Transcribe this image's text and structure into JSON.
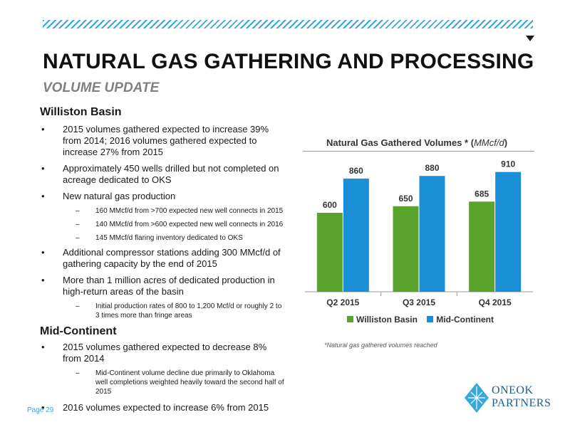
{
  "header": {
    "title": "NATURAL GAS GATHERING AND PROCESSING",
    "subtitle": "VOLUME UPDATE"
  },
  "williston": {
    "heading": "Williston Basin",
    "bullets": [
      "2015 volumes gathered expected to increase 39% from 2014; 2016 volumes gathered expected to increase 27% from 2015",
      "Approximately 450 wells drilled but not completed on acreage dedicated to OKS",
      "New natural gas production",
      "Additional compressor stations adding 300 MMcf/d of gathering capacity by the end of 2015",
      "More than 1 million acres of dedicated production in high-return areas of the basin"
    ],
    "sub_production": [
      "160 MMcf/d from >700 expected new well connects in 2015",
      "140 MMcf/d from >600 expected new well connects in 2016",
      "145 MMcf/d flaring inventory dedicated to OKS"
    ],
    "sub_acres": "Initial production rates of 800 to 1,200 Mcf/d or roughly 2 to 3 times more than fringe areas"
  },
  "midcon": {
    "heading": "Mid-Continent",
    "bullets": [
      "2015 volumes gathered expected to decrease 8% from 2014",
      "2016 volumes expected to increase 6% from 2015"
    ],
    "sub": "Mid-Continent volume decline due primarily to Oklahoma well completions weighted heavily toward the second half of  2015"
  },
  "bullet_glyph": "•",
  "dash_glyph": "–",
  "chart_data": {
    "type": "bar",
    "title": "Natural Gas Gathered Volumes *",
    "units": "MMcf/d",
    "categories": [
      "Q2 2015",
      "Q3 2015",
      "Q4 2015"
    ],
    "series": [
      {
        "name": "Williston Basin",
        "values": [
          600,
          650,
          685
        ],
        "color": "#5aa32d"
      },
      {
        "name": "Mid-Continent",
        "values": [
          860,
          880,
          910
        ],
        "color": "#1b8fd6"
      }
    ],
    "ylim": [
      0,
      1000
    ],
    "legend": "bottom",
    "grid": false
  },
  "footnote": "*Natural gas gathered volumes reached",
  "footer": {
    "page": "Page 29",
    "logo_line1": "ONEOK",
    "logo_line2": "PARTNERS"
  },
  "icons": {
    "corner": "down-arrow-icon",
    "logo": "oneok-logo-icon"
  }
}
